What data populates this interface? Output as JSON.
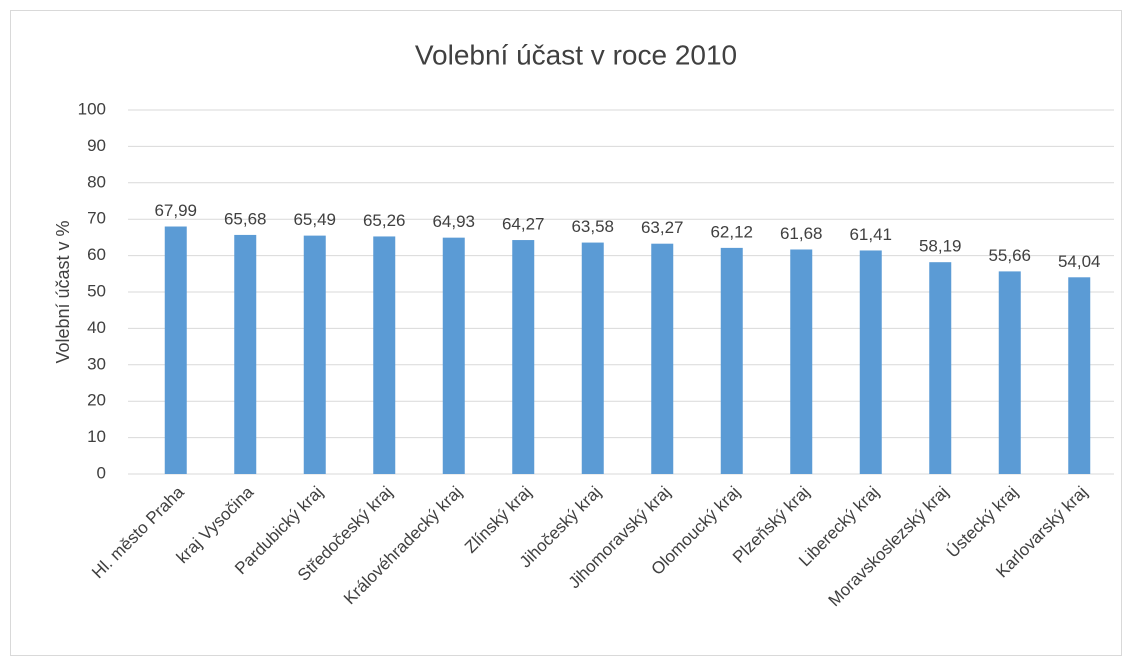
{
  "chart_data": {
    "type": "bar",
    "title": "Volební účast v roce 2010",
    "y_label": "Volební účast v %",
    "categories": [
      "Hl. město Praha",
      "kraj Vysočina",
      "Pardubický kraj",
      "Středočeský kraj",
      "Královéhradecký kraj",
      "Zlínský kraj",
      "Jihočeský kraj",
      "Jihomoravský kraj",
      "Olomoucký kraj",
      "Plzeňský kraj",
      "Liberecký kraj",
      "Moravskoslezský kraj",
      "Ústecký kraj",
      "Karlovarský kraj"
    ],
    "values": [
      67.99,
      65.68,
      65.49,
      65.26,
      64.93,
      64.27,
      63.58,
      63.27,
      62.12,
      61.68,
      61.41,
      58.19,
      55.66,
      54.04
    ],
    "value_labels": [
      "67,99",
      "65,68",
      "65,49",
      "65,26",
      "64,93",
      "64,27",
      "63,58",
      "63,27",
      "62,12",
      "61,68",
      "61,41",
      "58,19",
      "55,66",
      "54,04"
    ],
    "color": "#5b9bd5",
    "ylim": [
      0,
      100
    ],
    "yticks": [
      0,
      10,
      20,
      30,
      40,
      50,
      60,
      70,
      80,
      90,
      100
    ],
    "grid": true
  }
}
